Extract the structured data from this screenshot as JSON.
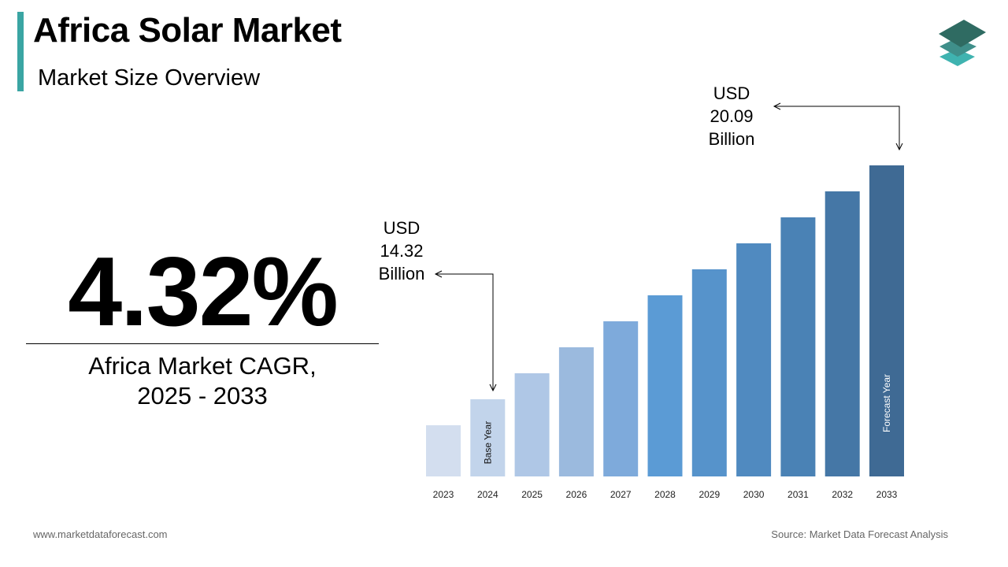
{
  "header": {
    "title": "Africa Solar Market",
    "subtitle": "Market Size Overview",
    "accent_color": "#3aa5a3",
    "logo": "stacked-layers-logo"
  },
  "kpi": {
    "value": "4.32%",
    "label_line1": "Africa Market CAGR,",
    "label_line2": "2025 - 2033"
  },
  "callouts": {
    "base": {
      "line1": "USD",
      "line2": "14.32",
      "line3": "Billion"
    },
    "forecast": {
      "line1": "USD",
      "line2": "20.09",
      "line3": "Billion"
    }
  },
  "chart_data": {
    "type": "bar",
    "categories": [
      "2023",
      "2024",
      "2025",
      "2026",
      "2027",
      "2028",
      "2029",
      "2030",
      "2031",
      "2032",
      "2033"
    ],
    "values": [
      null,
      14.32,
      null,
      null,
      null,
      null,
      null,
      null,
      null,
      null,
      20.09
    ],
    "unit": "USD Billion",
    "bar_annotations": {
      "2024": "Base Year",
      "2033": "Forecast Year"
    },
    "colors": [
      "#d3deef",
      "#c2d4eb",
      "#afc7e6",
      "#9bbade",
      "#7eaadb",
      "#5b9bd5",
      "#5693cb",
      "#508ac0",
      "#4a82b5",
      "#4577a6",
      "#3f6a94"
    ],
    "grid": false,
    "yaxis_visible": false
  },
  "footer": {
    "website": "www.marketdataforecast.com",
    "source": "Source: Market Data Forecast Analysis"
  }
}
